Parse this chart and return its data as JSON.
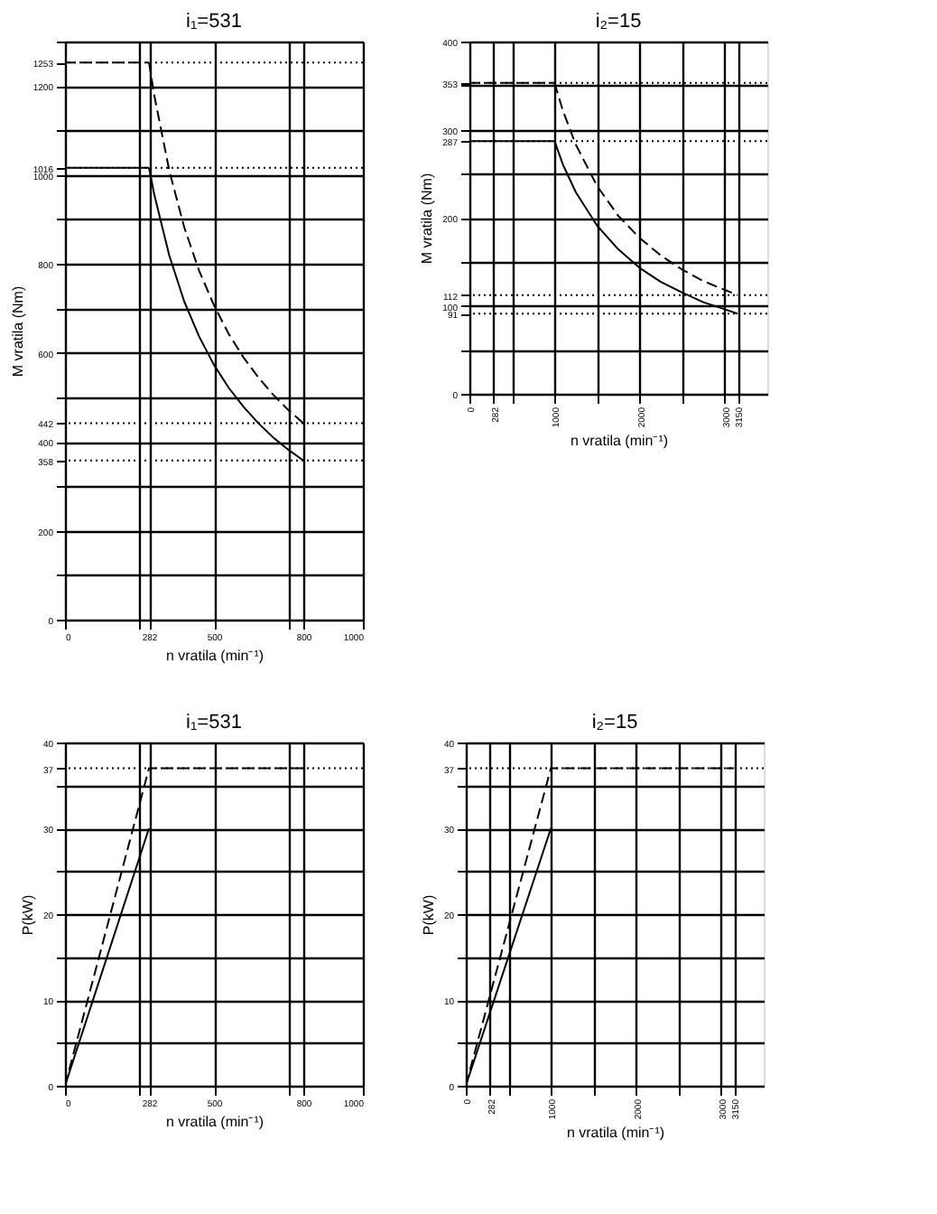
{
  "chart_data": [
    {
      "type": "line",
      "title": "i₁=531",
      "xlabel": "n vratila (min⁻¹)",
      "ylabel": "M vratila (Nm)",
      "xlim": [
        0,
        1000
      ],
      "ylim": [
        0,
        1300
      ],
      "grid": true,
      "xticks": [
        0,
        {
          "value": 250,
          "label": null
        },
        282,
        500,
        {
          "value": 750,
          "label": null
        },
        800,
        1000
      ],
      "yticks": [
        0,
        {
          "value": 100,
          "label": null
        },
        200,
        {
          "value": 300,
          "label": null
        },
        358,
        400,
        442,
        {
          "value": 500,
          "label": null
        },
        600,
        {
          "value": 700,
          "label": null
        },
        800,
        {
          "value": 900,
          "label": null
        },
        1000,
        1016,
        {
          "value": 1100,
          "label": null
        },
        1200,
        1253,
        {
          "value": 1300,
          "label": null
        }
      ],
      "series": [
        {
          "color": "#000000",
          "line_style": "dashed",
          "x": [
            282,
            300,
            350,
            400,
            450,
            500,
            550,
            600,
            650,
            700,
            750,
            800
          ],
          "values": [
            1253,
            1178,
            1010,
            883,
            785,
            707,
            642,
            589,
            544,
            505,
            471,
            442
          ]
        },
        {
          "color": "#000000",
          "line_style": "solid",
          "x": [
            282,
            300,
            350,
            400,
            450,
            500,
            550,
            600,
            650,
            700,
            750,
            800
          ],
          "values": [
            1016,
            955,
            819,
            716,
            637,
            573,
            521,
            478,
            441,
            409,
            382,
            358
          ]
        },
        {
          "color": "#000000",
          "line_style": "dashed",
          "x": [
            0,
            282
          ],
          "values": [
            1253,
            1253
          ]
        },
        {
          "color": "#000000",
          "line_style": "solid",
          "x": [
            0,
            282
          ],
          "values": [
            1016,
            1016
          ]
        }
      ],
      "ref_lines": [
        {
          "axis": "y",
          "value": 1253,
          "line_style": "dotted"
        },
        {
          "axis": "y",
          "value": 1016,
          "line_style": "dotted"
        },
        {
          "axis": "y",
          "value": 442,
          "line_style": "dotted"
        },
        {
          "axis": "y",
          "value": 358,
          "line_style": "dotted"
        }
      ]
    },
    {
      "type": "line",
      "title": "i₂=15",
      "xlabel": "n vratila (min⁻¹)",
      "ylabel": "M vratila (Nm)",
      "xlim": [
        0,
        3500
      ],
      "ylim": [
        0,
        400
      ],
      "grid": true,
      "xticks": [
        0,
        282,
        {
          "value": 500,
          "label": null
        },
        1000,
        {
          "value": 1500,
          "label": null
        },
        2000,
        {
          "value": 2500,
          "label": null
        },
        3000,
        3150
      ],
      "yticks": [
        0,
        {
          "value": 50,
          "label": null
        },
        91,
        100,
        112,
        {
          "value": 150,
          "label": null
        },
        200,
        {
          "value": 250,
          "label": null
        },
        287,
        300,
        {
          "value": 350,
          "label": null
        },
        353,
        400
      ],
      "series": [
        {
          "color": "#000000",
          "line_style": "dashed",
          "x": [
            1000,
            1100,
            1250,
            1500,
            1750,
            2000,
            2250,
            2500,
            2750,
            3000,
            3150
          ],
          "values": [
            353,
            321,
            283,
            236,
            202,
            177,
            157,
            141,
            128,
            118,
            112
          ]
        },
        {
          "color": "#000000",
          "line_style": "solid",
          "x": [
            1000,
            1100,
            1250,
            1500,
            1750,
            2000,
            2250,
            2500,
            2750,
            3000,
            3150
          ],
          "values": [
            287,
            260,
            229,
            191,
            164,
            143,
            127,
            115,
            104,
            96,
            91
          ]
        },
        {
          "color": "#000000",
          "line_style": "dashed",
          "x": [
            0,
            1000
          ],
          "values": [
            353,
            353
          ]
        },
        {
          "color": "#000000",
          "line_style": "solid",
          "x": [
            0,
            1000
          ],
          "values": [
            287,
            287
          ]
        }
      ],
      "ref_lines": [
        {
          "axis": "y",
          "value": 353,
          "line_style": "dotted"
        },
        {
          "axis": "y",
          "value": 287,
          "line_style": "dotted"
        },
        {
          "axis": "y",
          "value": 112,
          "line_style": "dotted"
        },
        {
          "axis": "y",
          "value": 91,
          "line_style": "dotted"
        }
      ]
    },
    {
      "type": "line",
      "title": "i₁=531",
      "xlabel": "n vratila (min⁻¹)",
      "ylabel": "P(kW)",
      "xlim": [
        0,
        1000
      ],
      "ylim": [
        0,
        40
      ],
      "grid": true,
      "xticks": [
        0,
        {
          "value": 250,
          "label": null
        },
        282,
        500,
        {
          "value": 750,
          "label": null
        },
        800,
        1000
      ],
      "yticks": [
        0,
        {
          "value": 5,
          "label": null
        },
        10,
        {
          "value": 15,
          "label": null
        },
        20,
        {
          "value": 25,
          "label": null
        },
        30,
        {
          "value": 35,
          "label": null
        },
        37,
        40
      ],
      "series": [
        {
          "color": "#000000",
          "line_style": "dashed",
          "x": [
            0,
            282,
            800
          ],
          "values": [
            0,
            37,
            37
          ]
        },
        {
          "color": "#000000",
          "line_style": "solid",
          "x": [
            0,
            282
          ],
          "values": [
            0,
            30
          ]
        }
      ],
      "ref_lines": [
        {
          "axis": "y",
          "value": 37,
          "line_style": "dotted"
        }
      ]
    },
    {
      "type": "line",
      "title": "i₂=15",
      "xlabel": "n vratila (min⁻¹)",
      "ylabel": "P(kW)",
      "xlim": [
        0,
        3500
      ],
      "ylim": [
        0,
        40
      ],
      "grid": true,
      "xticks": [
        0,
        282,
        {
          "value": 500,
          "label": null
        },
        1000,
        {
          "value": 1500,
          "label": null
        },
        2000,
        {
          "value": 2500,
          "label": null
        },
        3000,
        3150
      ],
      "yticks": [
        0,
        {
          "value": 5,
          "label": null
        },
        10,
        {
          "value": 15,
          "label": null
        },
        20,
        {
          "value": 25,
          "label": null
        },
        30,
        {
          "value": 35,
          "label": null
        },
        37,
        40
      ],
      "series": [
        {
          "color": "#000000",
          "line_style": "dashed",
          "x": [
            0,
            1000,
            3150
          ],
          "values": [
            0,
            37,
            37
          ]
        },
        {
          "color": "#000000",
          "line_style": "solid",
          "x": [
            0,
            1000
          ],
          "values": [
            0,
            30
          ]
        }
      ],
      "ref_lines": [
        {
          "axis": "y",
          "value": 37,
          "line_style": "dotted"
        }
      ]
    }
  ]
}
